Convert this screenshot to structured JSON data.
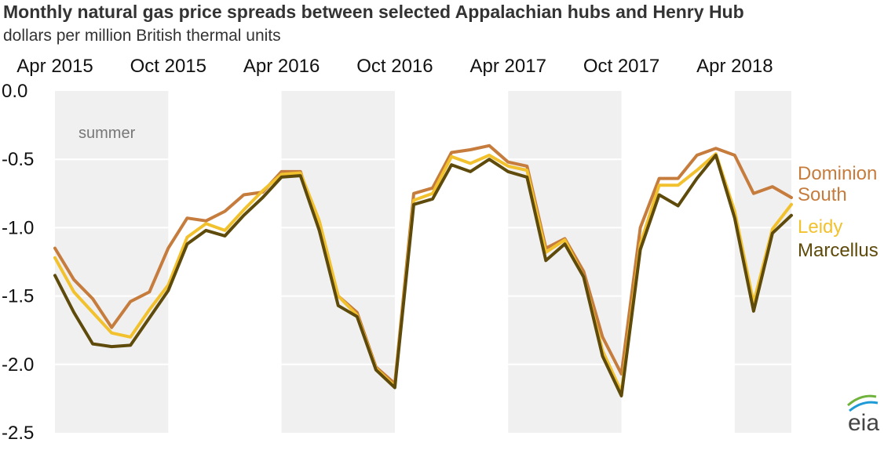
{
  "chart_data": {
    "type": "line",
    "title": "Monthly natural gas price spreads between selected Appalachian hubs and Henry Hub",
    "subtitle": "dollars per million British thermal units",
    "x": [
      "2015-04",
      "2015-05",
      "2015-06",
      "2015-07",
      "2015-08",
      "2015-09",
      "2015-10",
      "2015-11",
      "2015-12",
      "2016-01",
      "2016-02",
      "2016-03",
      "2016-04",
      "2016-05",
      "2016-06",
      "2016-07",
      "2016-08",
      "2016-09",
      "2016-10",
      "2016-11",
      "2016-12",
      "2017-01",
      "2017-02",
      "2017-03",
      "2017-04",
      "2017-05",
      "2017-06",
      "2017-07",
      "2017-08",
      "2017-09",
      "2017-10",
      "2017-11",
      "2017-12",
      "2018-01",
      "2018-02",
      "2018-03",
      "2018-04",
      "2018-05",
      "2018-06",
      "2018-07"
    ],
    "x_tick_labels": [
      "Apr 2015",
      "Oct 2015",
      "Apr 2016",
      "Oct 2016",
      "Apr 2017",
      "Oct 2017",
      "Apr 2018"
    ],
    "y_tick_labels": [
      "0.0",
      "-0.5",
      "-1.0",
      "-1.5",
      "-2.0",
      "-2.5"
    ],
    "ylim": [
      -2.5,
      0.0
    ],
    "summer_label": "summer",
    "summer_shading": [
      [
        "2015-04",
        "2015-10"
      ],
      [
        "2016-04",
        "2016-10"
      ],
      [
        "2017-04",
        "2017-10"
      ],
      [
        "2018-04",
        "2018-07"
      ]
    ],
    "series": [
      {
        "name": "Dominion South",
        "label_lines": [
          "Dominion",
          "South"
        ],
        "color": "#c67c3c",
        "values": [
          -1.15,
          -1.38,
          -1.52,
          -1.73,
          -1.54,
          -1.47,
          -1.15,
          -0.93,
          -0.95,
          -0.88,
          -0.76,
          -0.74,
          -0.59,
          -0.59,
          -1.02,
          -1.5,
          -1.62,
          -2.02,
          -2.14,
          -0.75,
          -0.71,
          -0.45,
          -0.43,
          -0.4,
          -0.52,
          -0.55,
          -1.15,
          -1.08,
          -1.32,
          -1.8,
          -2.07,
          -1.0,
          -0.64,
          -0.64,
          -0.47,
          -0.42,
          -0.47,
          -0.75,
          -0.7,
          -0.78
        ]
      },
      {
        "name": "Leidy",
        "label_lines": [
          "Leidy"
        ],
        "color": "#f2c12e",
        "values": [
          -1.22,
          -1.47,
          -1.62,
          -1.77,
          -1.8,
          -1.6,
          -1.42,
          -1.07,
          -0.97,
          -1.02,
          -0.87,
          -0.73,
          -0.61,
          -0.6,
          -0.95,
          -1.5,
          -1.64,
          -2.03,
          -2.16,
          -0.8,
          -0.75,
          -0.48,
          -0.53,
          -0.47,
          -0.55,
          -0.58,
          -1.18,
          -1.09,
          -1.36,
          -1.9,
          -2.2,
          -1.12,
          -0.69,
          -0.69,
          -0.58,
          -0.46,
          -0.88,
          -1.55,
          -1.01,
          -0.83
        ]
      },
      {
        "name": "Marcellus",
        "label_lines": [
          "Marcellus"
        ],
        "color": "#5e4a0a",
        "values": [
          -1.35,
          -1.62,
          -1.85,
          -1.87,
          -1.86,
          -1.66,
          -1.46,
          -1.12,
          -1.02,
          -1.06,
          -0.91,
          -0.78,
          -0.63,
          -0.62,
          -1.02,
          -1.57,
          -1.65,
          -2.04,
          -2.17,
          -0.83,
          -0.79,
          -0.54,
          -0.59,
          -0.5,
          -0.59,
          -0.63,
          -1.24,
          -1.12,
          -1.36,
          -1.94,
          -2.23,
          -1.16,
          -0.76,
          -0.84,
          -0.64,
          -0.47,
          -0.93,
          -1.61,
          -1.04,
          -0.91
        ]
      }
    ]
  },
  "logo_text": "eia"
}
